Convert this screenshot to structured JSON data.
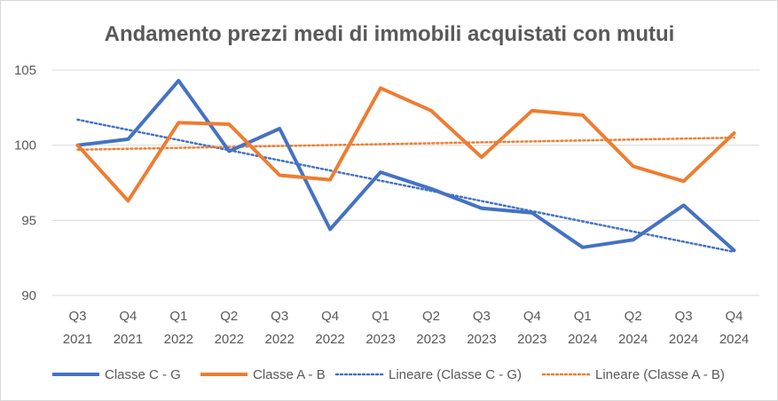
{
  "chart_data": {
    "type": "line",
    "title": "Andamento prezzi medi di immobili acquistati con mutui",
    "xlabel": "",
    "ylabel": "",
    "ylim": [
      90,
      105
    ],
    "yticks": [
      90,
      95,
      100,
      105
    ],
    "grid": true,
    "legend_position": "bottom",
    "categories": [
      [
        "Q3",
        "2021"
      ],
      [
        "Q4",
        "2021"
      ],
      [
        "Q1",
        "2022"
      ],
      [
        "Q2",
        "2022"
      ],
      [
        "Q3",
        "2022"
      ],
      [
        "Q4",
        "2022"
      ],
      [
        "Q1",
        "2023"
      ],
      [
        "Q2",
        "2023"
      ],
      [
        "Q3",
        "2023"
      ],
      [
        "Q4",
        "2023"
      ],
      [
        "Q1",
        "2024"
      ],
      [
        "Q2",
        "2024"
      ],
      [
        "Q3",
        "2024"
      ],
      [
        "Q4",
        "2024"
      ]
    ],
    "series": [
      {
        "name": "Classe C - G",
        "color": "#4472c4",
        "style": "solid",
        "values": [
          100.0,
          100.4,
          104.3,
          99.6,
          101.1,
          94.4,
          98.2,
          97.1,
          95.8,
          95.5,
          93.2,
          93.7,
          96.0,
          93.0
        ]
      },
      {
        "name": "Classe A - B",
        "color": "#ed7d31",
        "style": "solid",
        "values": [
          100.0,
          96.3,
          101.5,
          101.4,
          98.0,
          97.7,
          103.8,
          102.3,
          99.2,
          102.3,
          102.0,
          98.6,
          97.6,
          100.8
        ]
      }
    ],
    "trendlines": [
      {
        "name": "Lineare (Classe C - G)",
        "color": "#4472c4",
        "style": "dotted",
        "start": 101.7,
        "end": 92.9
      },
      {
        "name": "Lineare (Classe A - B)",
        "color": "#ed7d31",
        "style": "dotted",
        "start": 99.7,
        "end": 100.5
      }
    ]
  }
}
